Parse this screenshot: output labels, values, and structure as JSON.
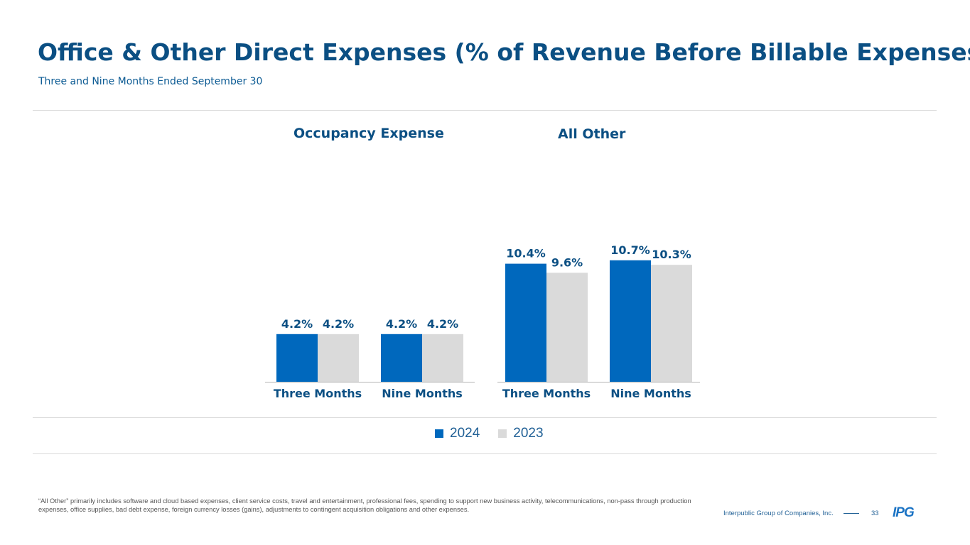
{
  "header": {
    "title": "Office & Other Direct Expenses (% of Revenue Before Billable Expenses)",
    "subtitle": "Three and Nine Months Ended September 30"
  },
  "colors": {
    "series_2024": "#0068bd",
    "series_2023": "#dadada",
    "title": "#0b4f83"
  },
  "chart_data": [
    {
      "type": "bar",
      "title": "Occupancy Expense",
      "categories": [
        "Three Months",
        "Nine Months"
      ],
      "series": [
        {
          "name": "2024",
          "values": [
            4.2,
            4.2
          ],
          "labels": [
            "4.2%",
            "4.2%"
          ]
        },
        {
          "name": "2023",
          "values": [
            4.2,
            4.2
          ],
          "labels": [
            "4.2%",
            "4.2%"
          ]
        }
      ],
      "ylim": [
        0,
        12
      ],
      "grid": false
    },
    {
      "type": "bar",
      "title": "All Other",
      "categories": [
        "Three Months",
        "Nine Months"
      ],
      "series": [
        {
          "name": "2024",
          "values": [
            10.4,
            10.7
          ],
          "labels": [
            "10.4%",
            "10.7%"
          ]
        },
        {
          "name": "2023",
          "values": [
            9.6,
            10.3
          ],
          "labels": [
            "9.6%",
            "10.3%"
          ]
        }
      ],
      "ylim": [
        0,
        12
      ],
      "grid": false
    }
  ],
  "legend": {
    "placement": "bottom",
    "items": [
      {
        "label": "2024",
        "color": "#0068bd"
      },
      {
        "label": "2023",
        "color": "#dadada"
      }
    ]
  },
  "footnote": "“All Other” primarily includes software and cloud based expenses, client service costs, travel and entertainment, professional fees, spending to support new business activity, telecommunications, non-pass through production expenses, office supplies, bad debt expense, foreign currency losses (gains), adjustments to contingent acquisition obligations and other expenses.",
  "footer": {
    "company": "Interpublic Group of Companies, Inc.",
    "page": "33",
    "logo": "IPG"
  }
}
